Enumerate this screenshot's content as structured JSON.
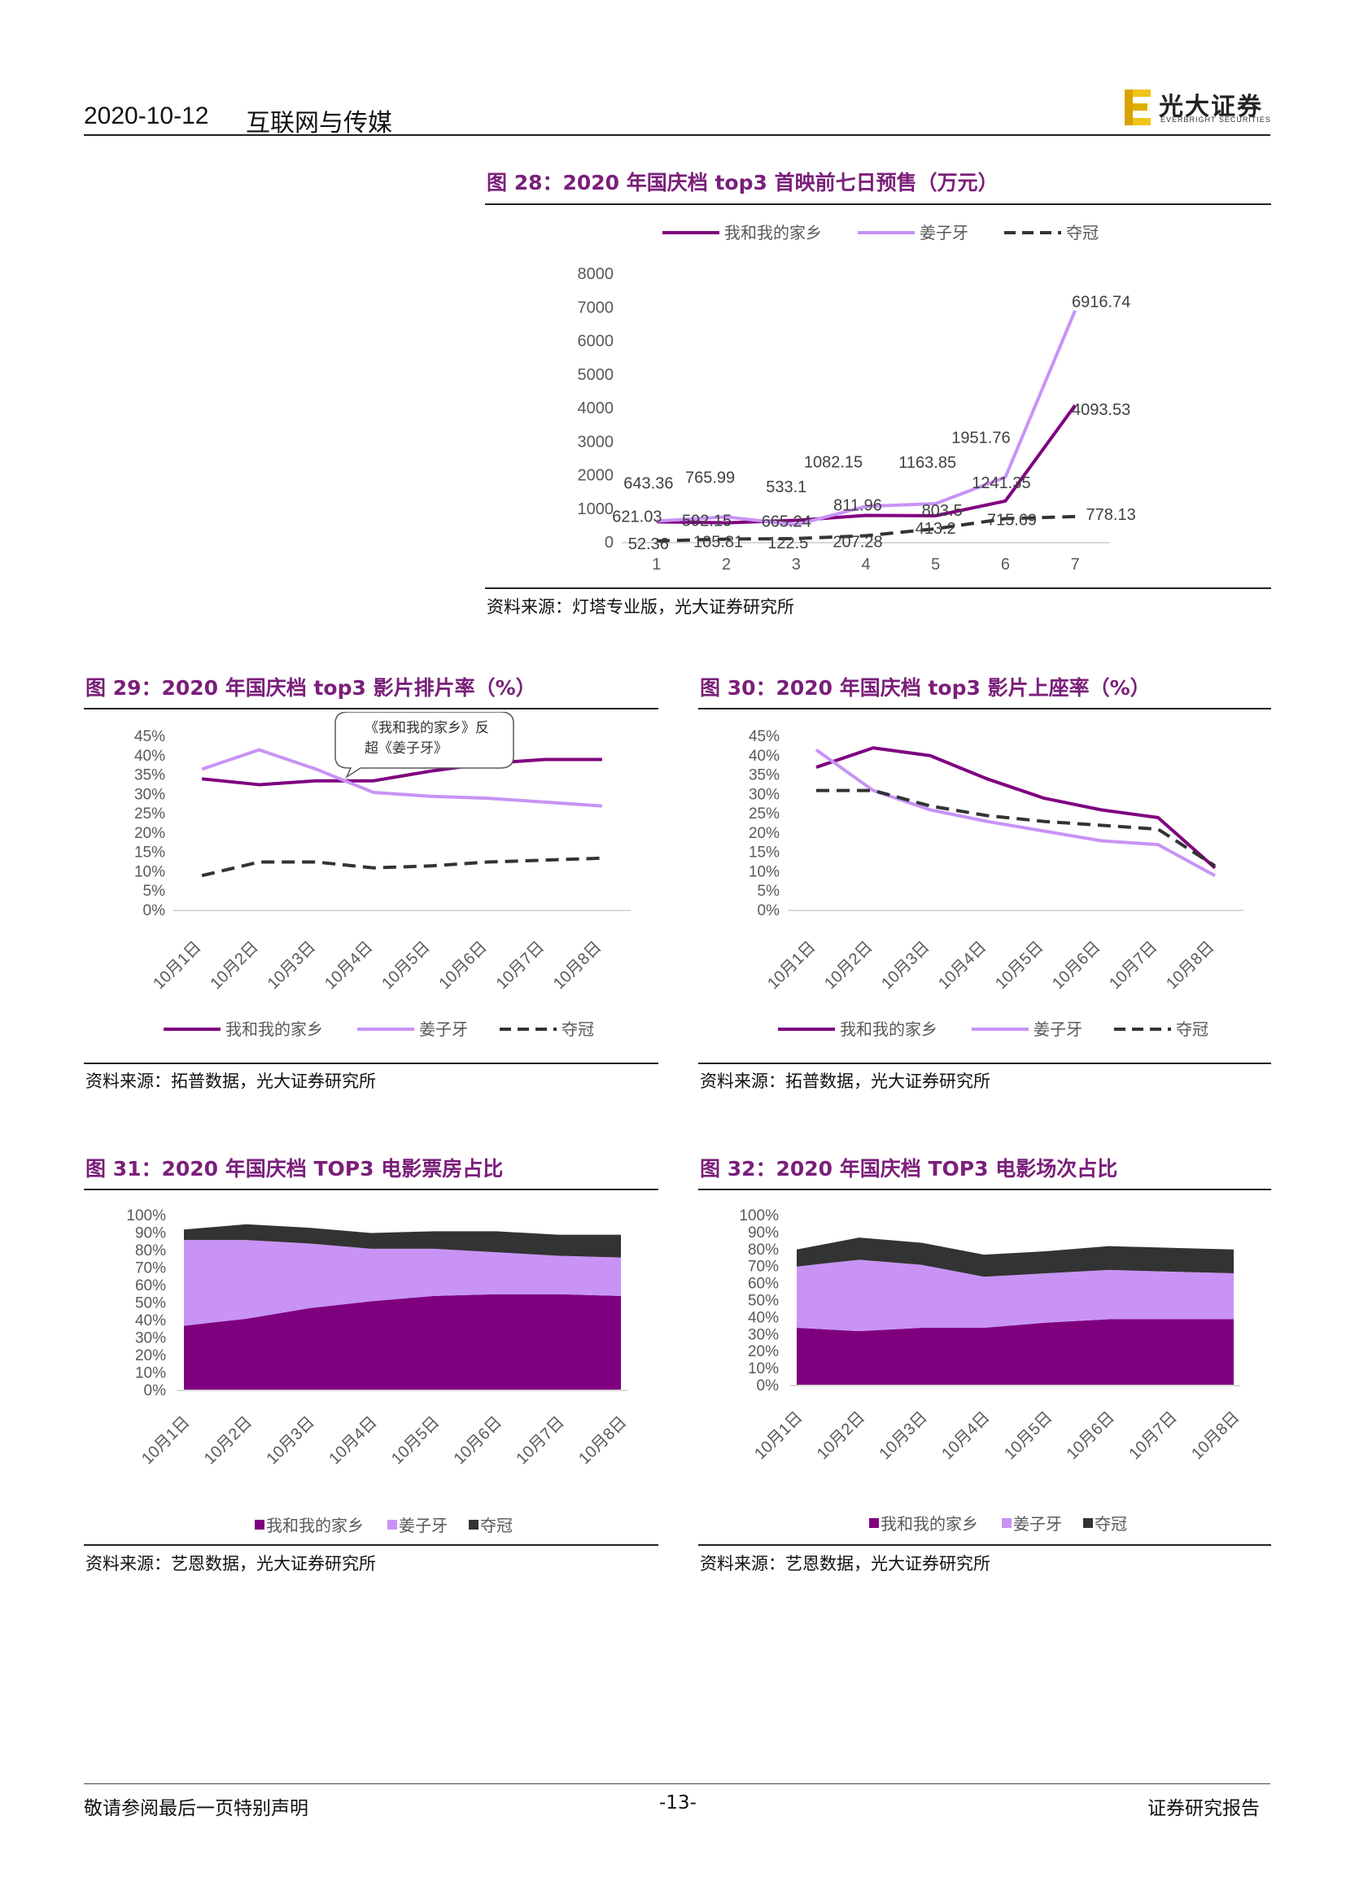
{
  "header": {
    "date": "2020-10-12",
    "sector": "互联网与传媒",
    "brand": "光大证券",
    "brand_sub": "EVERBRIGHT SECURITIES"
  },
  "footer": {
    "disclaimer": "敬请参阅最后一页特别声明",
    "page": "-13-",
    "doc_type": "证券研究报告"
  },
  "colors": {
    "series1": "#7f007f",
    "series2": "#c893f5",
    "series3": "#333333",
    "title": "#7a1f7a"
  },
  "figures": [
    {
      "title": "图 28：2020 年国庆档 top3 首映前七日预售（万元）",
      "source": "资料来源：灯塔专业版，光大证券研究所"
    },
    {
      "title": "图 29：2020 年国庆档 top3 影片排片率（%）",
      "source": "资料来源：拓普数据，光大证券研究所",
      "callout": [
        "《我和我的家乡》反",
        "超《姜子牙》"
      ]
    },
    {
      "title": "图 30：2020 年国庆档 top3 影片上座率（%）",
      "source": "资料来源：拓普数据，光大证券研究所"
    },
    {
      "title": "图 31：2020 年国庆档 TOP3 电影票房占比",
      "source": "资料来源：艺恩数据，光大证券研究所"
    },
    {
      "title": "图 32：2020 年国庆档 TOP3 电影场次占比",
      "source": "资料来源：艺恩数据，光大证券研究所"
    }
  ],
  "chart_data": [
    {
      "type": "line",
      "x": [
        "1",
        "2",
        "3",
        "4",
        "5",
        "6",
        "7"
      ],
      "ylim": [
        0,
        8000
      ],
      "yticks": [
        "0",
        "1000",
        "2000",
        "3000",
        "4000",
        "5000",
        "6000",
        "7000",
        "8000"
      ],
      "legend_position": "top",
      "series": [
        {
          "name": "我和我的家乡",
          "style": "solid",
          "values": [
            621.03,
            592.15,
            665.24,
            811.96,
            803.5,
            1241.35,
            4093.53
          ],
          "labels": [
            "621.03",
            "592.15",
            "665.24",
            "811.96",
            "803.5",
            "1241.35",
            "4093.53"
          ]
        },
        {
          "name": "姜子牙",
          "style": "solid",
          "values": [
            643.36,
            765.99,
            533.1,
            1082.15,
            1163.85,
            1951.76,
            6916.74
          ],
          "labels": [
            "643.36",
            "765.99",
            "533.1",
            "1082.15",
            "1163.85",
            "1951.76",
            "6916.74"
          ]
        },
        {
          "name": "夺冠",
          "style": "dashed",
          "values": [
            52.36,
            105.81,
            122.5,
            207.28,
            413.2,
            715.69,
            778.13
          ],
          "labels": [
            "52.36",
            "105.81",
            "122.5",
            "207.28",
            "413.2",
            "715.69",
            "778.13"
          ]
        }
      ]
    },
    {
      "type": "line",
      "x": [
        "10月1日",
        "10月2日",
        "10月3日",
        "10月4日",
        "10月5日",
        "10月6日",
        "10月7日",
        "10月8日"
      ],
      "ylim": [
        0,
        45
      ],
      "yticks": [
        "0%",
        "5%",
        "10%",
        "15%",
        "20%",
        "25%",
        "30%",
        "35%",
        "40%",
        "45%"
      ],
      "legend_position": "bottom",
      "series": [
        {
          "name": "我和我的家乡",
          "style": "solid",
          "values": [
            34,
            32.5,
            33.5,
            33.5,
            36,
            38,
            39,
            39
          ]
        },
        {
          "name": "姜子牙",
          "style": "solid",
          "values": [
            36.5,
            41.5,
            36.5,
            30.5,
            29.5,
            29,
            28,
            27
          ]
        },
        {
          "name": "夺冠",
          "style": "dashed",
          "values": [
            9,
            12.5,
            12.5,
            11,
            11.5,
            12.5,
            13,
            13.5
          ]
        }
      ]
    },
    {
      "type": "line",
      "x": [
        "10月1日",
        "10月2日",
        "10月3日",
        "10月4日",
        "10月5日",
        "10月6日",
        "10月7日",
        "10月8日"
      ],
      "ylim": [
        0,
        45
      ],
      "yticks": [
        "0%",
        "5%",
        "10%",
        "15%",
        "20%",
        "25%",
        "30%",
        "35%",
        "40%",
        "45%"
      ],
      "legend_position": "bottom",
      "series": [
        {
          "name": "我和我的家乡",
          "style": "solid",
          "values": [
            37,
            42,
            40,
            34,
            29,
            26,
            24,
            11
          ]
        },
        {
          "name": "姜子牙",
          "style": "solid",
          "values": [
            41.5,
            31,
            26,
            23,
            20.5,
            18,
            17,
            9
          ]
        },
        {
          "name": "夺冠",
          "style": "dashed",
          "values": [
            31,
            31,
            27,
            24.5,
            23,
            22,
            21,
            11.5
          ]
        }
      ]
    },
    {
      "type": "area",
      "stacked": true,
      "x": [
        "10月1日",
        "10月2日",
        "10月3日",
        "10月4日",
        "10月5日",
        "10月6日",
        "10月7日",
        "10月8日"
      ],
      "ylim": [
        0,
        100
      ],
      "yticks": [
        "0%",
        "10%",
        "20%",
        "30%",
        "40%",
        "50%",
        "60%",
        "70%",
        "80%",
        "90%",
        "100%"
      ],
      "legend_position": "bottom",
      "series": [
        {
          "name": "我和我的家乡",
          "values": [
            37,
            41,
            47,
            51,
            54,
            55,
            55,
            54
          ]
        },
        {
          "name": "姜子牙",
          "values": [
            49,
            45,
            37,
            30,
            27,
            24,
            22,
            22
          ]
        },
        {
          "name": "夺冠",
          "values": [
            6,
            9,
            9,
            9,
            10,
            12,
            12,
            13
          ]
        }
      ]
    },
    {
      "type": "area",
      "stacked": true,
      "x": [
        "10月1日",
        "10月2日",
        "10月3日",
        "10月4日",
        "10月5日",
        "10月6日",
        "10月7日",
        "10月8日"
      ],
      "ylim": [
        0,
        100
      ],
      "yticks": [
        "0%",
        "10%",
        "20%",
        "30%",
        "40%",
        "50%",
        "60%",
        "70%",
        "80%",
        "90%",
        "100%"
      ],
      "legend_position": "bottom",
      "series": [
        {
          "name": "我和我的家乡",
          "values": [
            34,
            32,
            34,
            34,
            37,
            39,
            39,
            39
          ]
        },
        {
          "name": "姜子牙",
          "values": [
            36,
            42,
            37,
            30,
            29,
            29,
            28,
            27
          ]
        },
        {
          "name": "夺冠",
          "values": [
            10,
            13,
            13,
            13,
            13,
            14,
            14,
            14
          ]
        }
      ]
    }
  ]
}
